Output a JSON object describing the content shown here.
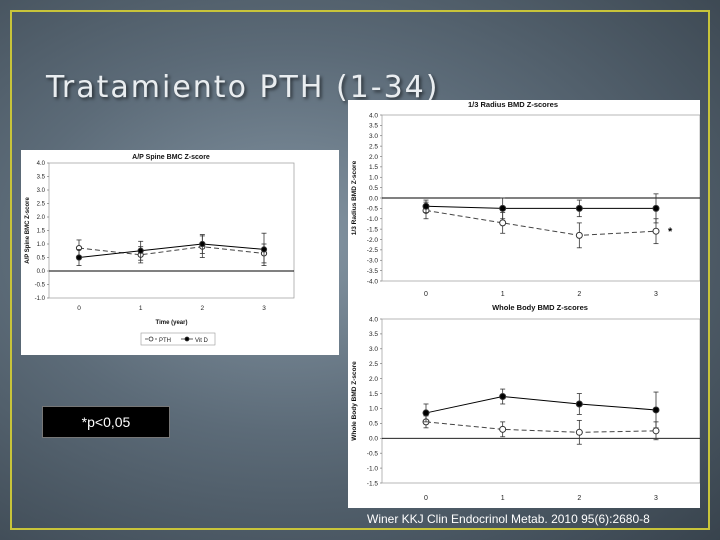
{
  "slide": {
    "title": "Tratamiento PTH (1-34)",
    "pvalue_label": "*p<0,05",
    "citation": "Winer KKJ Clin Endocrinol Metab. 2010 95(6):2680-8",
    "colors": {
      "frame": "#c8c43a",
      "pvalue_bg": "#000000"
    }
  },
  "chart_data": [
    {
      "id": "spine",
      "type": "line",
      "title": "A/P Spine BMC Z-score",
      "xlabel": "Time (year)",
      "ylabel": "A/P Spine BMC Z-score",
      "categories": [
        "0",
        "1",
        "2",
        "3"
      ],
      "ylim": [
        -1.0,
        4.0
      ],
      "yticks": [
        "4.0",
        "3.5",
        "3.0",
        "2.5",
        "2.0",
        "1.5",
        "1.0",
        "0.5",
        "0.0",
        "-0.5",
        "-1.0"
      ],
      "legend": [
        "PTH",
        "Vit D"
      ],
      "legend_position": "bottom",
      "series": [
        {
          "name": "PTH",
          "marker": "open",
          "dash": true,
          "values": [
            0.85,
            0.6,
            0.9,
            0.65
          ],
          "err": [
            0.3,
            0.3,
            0.4,
            0.35
          ]
        },
        {
          "name": "Vit D",
          "marker": "filled",
          "dash": false,
          "values": [
            0.5,
            0.75,
            1.0,
            0.8
          ],
          "err": [
            0.3,
            0.35,
            0.35,
            0.6
          ]
        }
      ]
    },
    {
      "id": "radius",
      "type": "line",
      "title": "1/3 Radius BMD Z-scores",
      "xlabel": "",
      "ylabel": "1/3 Radius BMD Z-score",
      "categories": [
        "0",
        "1",
        "2",
        "3"
      ],
      "ylim": [
        -4.0,
        4.0
      ],
      "yticks": [
        "4.0",
        "3.5",
        "3.0",
        "2.5",
        "2.0",
        "1.5",
        "1.0",
        "0.5",
        "0.0",
        "-0.5",
        "-1.0",
        "-1.5",
        "-2.0",
        "-2.5",
        "-3.0",
        "-3.5",
        "-4.0"
      ],
      "annotation": "*",
      "series": [
        {
          "name": "PTH",
          "marker": "open",
          "dash": true,
          "values": [
            -0.6,
            -1.2,
            -1.8,
            -1.6
          ],
          "err": [
            0.4,
            0.5,
            0.6,
            0.6
          ]
        },
        {
          "name": "Vit D",
          "marker": "filled",
          "dash": false,
          "values": [
            -0.4,
            -0.5,
            -0.5,
            -0.5
          ],
          "err": [
            0.3,
            0.5,
            0.4,
            0.7
          ]
        }
      ]
    },
    {
      "id": "wholebody",
      "type": "line",
      "title": "Whole Body BMD Z-scores",
      "xlabel": "",
      "ylabel": "Whole Body BMD Z-score",
      "categories": [
        "0",
        "1",
        "2",
        "3"
      ],
      "ylim": [
        -1.5,
        4.0
      ],
      "yticks": [
        "4.0",
        "3.5",
        "3.0",
        "2.5",
        "2.0",
        "1.5",
        "1.0",
        "0.5",
        "0.0",
        "-0.5",
        "-1.0",
        "-1.5"
      ],
      "series": [
        {
          "name": "PTH",
          "marker": "open",
          "dash": true,
          "values": [
            0.55,
            0.3,
            0.2,
            0.25
          ],
          "err": [
            0.2,
            0.25,
            0.4,
            0.3
          ]
        },
        {
          "name": "Vit D",
          "marker": "filled",
          "dash": false,
          "values": [
            0.85,
            1.4,
            1.15,
            0.95
          ],
          "err": [
            0.3,
            0.25,
            0.35,
            0.6
          ]
        }
      ]
    }
  ]
}
